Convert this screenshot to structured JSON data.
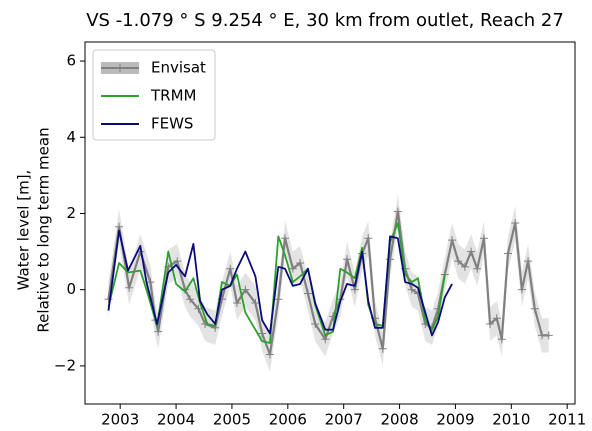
{
  "chart_data": {
    "type": "line",
    "title": "VS -1.079 ° S 9.254 ° E, 30 km from outlet, Reach 27",
    "ylabel": [
      "Water level  [m],",
      "Relative to long term mean"
    ],
    "xlim": [
      2002.37,
      2011.14
    ],
    "ylim": [
      -3,
      6.5
    ],
    "xticks": [
      2003,
      2004,
      2005,
      2006,
      2007,
      2008,
      2009,
      2010,
      2011
    ],
    "yticks": [
      {
        "value": -2,
        "label": "−2"
      },
      0,
      2,
      4,
      6
    ],
    "legend": "upper left",
    "series": [
      {
        "name": "Envisat",
        "color": "#808080",
        "band_color": "#e3e3e3",
        "marker": "+",
        "uncertainty": 0.45,
        "x": [
          2002.79,
          2002.98,
          2003.16,
          2003.36,
          2003.54,
          2003.63,
          2003.68,
          2003.86,
          2004.02,
          2004.16,
          2004.25,
          2004.4,
          2004.52,
          2004.7,
          2004.82,
          2004.97,
          2005.09,
          2005.24,
          2005.42,
          2005.54,
          2005.68,
          2005.83,
          2005.95,
          2006.09,
          2006.22,
          2006.36,
          2006.49,
          2006.67,
          2006.81,
          2006.94,
          2007.06,
          2007.2,
          2007.33,
          2007.44,
          2007.56,
          2007.7,
          2007.83,
          2007.97,
          2008.1,
          2008.22,
          2008.33,
          2008.46,
          2008.58,
          2008.69,
          2008.81,
          2008.94,
          2009.05,
          2009.17,
          2009.28,
          2009.39,
          2009.51,
          2009.62,
          2009.74,
          2009.83,
          2009.94,
          2010.07,
          2010.19,
          2010.3,
          2010.42,
          2010.55,
          2010.67
        ],
        "values": [
          -0.25,
          1.65,
          0.05,
          1.0,
          0.2,
          -0.8,
          -1.1,
          0.6,
          0.75,
          0.0,
          -0.25,
          -0.5,
          -0.9,
          -1.0,
          -0.25,
          0.55,
          -0.35,
          0.0,
          -0.35,
          -1.15,
          -1.7,
          -0.25,
          1.35,
          0.55,
          0.7,
          -0.1,
          -0.9,
          -1.3,
          -0.7,
          -0.25,
          0.8,
          0.0,
          0.95,
          1.35,
          -0.75,
          -1.55,
          0.8,
          2.05,
          0.55,
          0.0,
          -0.1,
          -0.9,
          -1.0,
          -0.5,
          0.4,
          1.3,
          0.75,
          0.6,
          1.0,
          0.55,
          1.35,
          -0.9,
          -0.75,
          -1.3,
          0.95,
          1.75,
          0.0,
          0.75,
          -0.5,
          -1.2,
          -1.2
        ]
      },
      {
        "name": "TRMM",
        "color": "#2ca02c",
        "x": [
          2002.79,
          2002.98,
          2003.14,
          2003.36,
          2003.47,
          2003.66,
          2003.86,
          2004.0,
          2004.16,
          2004.31,
          2004.43,
          2004.56,
          2004.7,
          2004.82,
          2004.97,
          2005.09,
          2005.24,
          2005.54,
          2005.68,
          2005.83,
          2005.95,
          2006.09,
          2006.22,
          2006.36,
          2006.49,
          2006.67,
          2006.81,
          2006.94,
          2007.06,
          2007.2,
          2007.33,
          2007.44,
          2007.56,
          2007.7,
          2007.83,
          2007.97,
          2008.1,
          2008.22,
          2008.33,
          2008.46,
          2008.58,
          2008.69,
          2008.81
        ],
        "values": [
          -0.45,
          0.7,
          0.45,
          0.5,
          0.0,
          -0.95,
          1.0,
          0.15,
          -0.05,
          0.3,
          -0.35,
          -0.9,
          -0.95,
          0.2,
          0.1,
          0.4,
          -0.6,
          -1.35,
          -1.4,
          1.4,
          0.9,
          0.2,
          0.35,
          0.55,
          -0.4,
          -1.2,
          -1.1,
          0.55,
          0.45,
          0.3,
          1.1,
          -0.4,
          -0.9,
          -0.95,
          1.25,
          1.75,
          0.4,
          0.2,
          0.3,
          -0.8,
          -1.05,
          -0.7,
          0.4
        ]
      },
      {
        "name": "FEWS",
        "color": "#0a0a7a",
        "x": [
          2002.79,
          2002.98,
          2003.14,
          2003.36,
          2003.47,
          2003.66,
          2003.86,
          2004.0,
          2004.16,
          2004.31,
          2004.43,
          2004.56,
          2004.7,
          2004.82,
          2004.97,
          2005.09,
          2005.24,
          2005.42,
          2005.54,
          2005.68,
          2005.83,
          2005.95,
          2006.09,
          2006.22,
          2006.36,
          2006.49,
          2006.67,
          2006.81,
          2006.94,
          2007.06,
          2007.2,
          2007.33,
          2007.44,
          2007.56,
          2007.7,
          2007.83,
          2007.97,
          2008.1,
          2008.22,
          2008.33,
          2008.46,
          2008.58,
          2008.69,
          2008.81,
          2008.94
        ],
        "values": [
          -0.55,
          1.55,
          0.5,
          1.15,
          0.2,
          -0.9,
          0.45,
          0.65,
          0.35,
          1.2,
          -0.3,
          -0.65,
          -0.9,
          0.0,
          0.1,
          0.55,
          1.0,
          0.35,
          -0.8,
          -1.15,
          0.6,
          0.55,
          0.1,
          0.15,
          0.55,
          -0.35,
          -1.05,
          -1.05,
          -0.3,
          0.15,
          0.1,
          1.0,
          -0.3,
          -1.0,
          -1.0,
          1.4,
          1.35,
          0.2,
          0.15,
          0.05,
          -0.6,
          -1.2,
          -0.85,
          -0.2,
          0.15
        ]
      }
    ]
  }
}
